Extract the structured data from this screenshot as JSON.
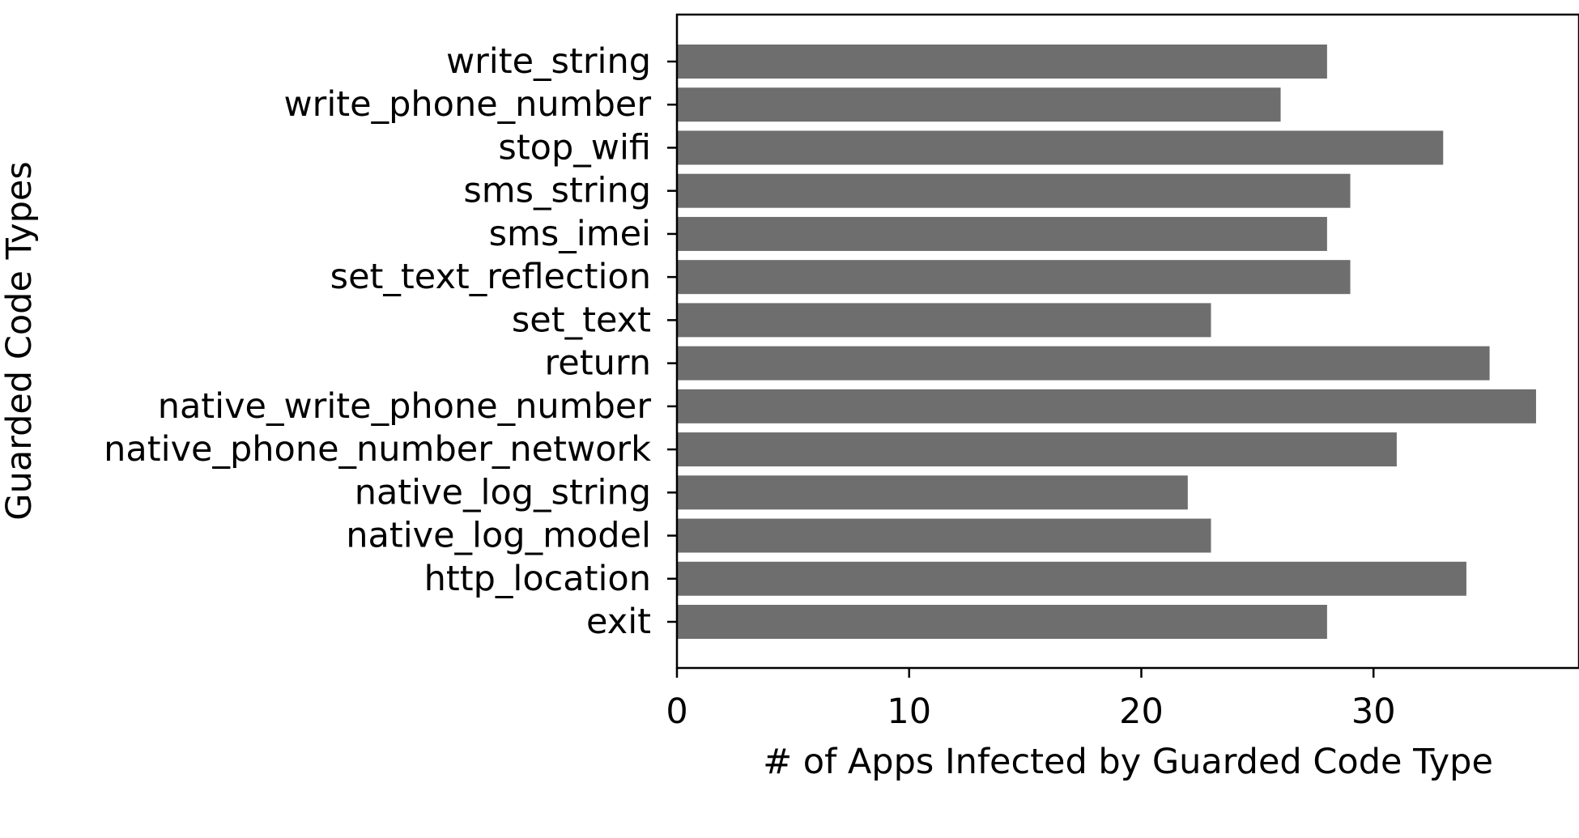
{
  "chart_data": {
    "type": "bar",
    "orientation": "horizontal",
    "title": "",
    "xlabel": "# of Apps Infected by Guarded Code Type",
    "ylabel": "Guarded Code Types",
    "categories": [
      "write_string",
      "write_phone_number",
      "stop_wifi",
      "sms_string",
      "sms_imei",
      "set_text_reflection",
      "set_text",
      "return",
      "native_write_phone_number",
      "native_phone_number_network",
      "native_log_string",
      "native_log_model",
      "http_location",
      "exit"
    ],
    "values": [
      28,
      26,
      33,
      29,
      28,
      29,
      23,
      35,
      37,
      31,
      22,
      23,
      34,
      28
    ],
    "xlim": [
      0,
      38.85
    ],
    "xticks": [
      "0",
      "10",
      "20",
      "30"
    ],
    "grid": false,
    "bar_color": "#6e6e6e"
  }
}
